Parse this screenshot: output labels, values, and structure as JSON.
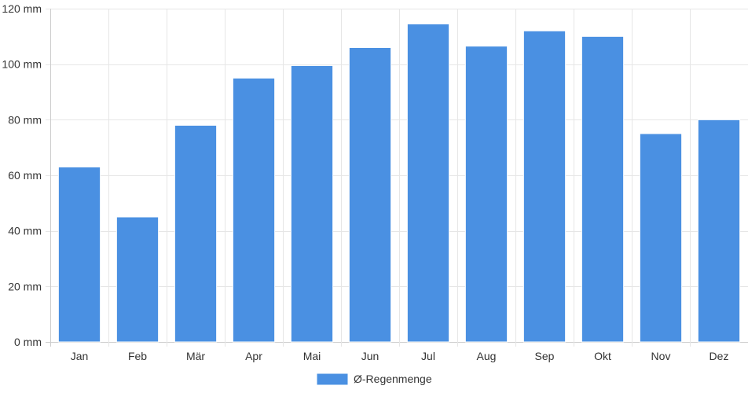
{
  "chart_data": {
    "type": "bar",
    "categories": [
      "Jan",
      "Feb",
      "Mär",
      "Apr",
      "Mai",
      "Jun",
      "Jul",
      "Aug",
      "Sep",
      "Okt",
      "Nov",
      "Dez"
    ],
    "series": [
      {
        "name": "Ø-Regenmenge",
        "values": [
          63,
          45,
          78,
          95,
          99.5,
          106,
          114.5,
          106.5,
          112,
          110,
          75,
          80
        ],
        "color": "#4a90e2"
      }
    ],
    "yticks": [
      "0 mm",
      "20 mm",
      "40 mm",
      "60 mm",
      "80 mm",
      "100 mm",
      "120 mm"
    ],
    "ylim": [
      0,
      120
    ],
    "grid": true,
    "legend_position": "bottom"
  }
}
